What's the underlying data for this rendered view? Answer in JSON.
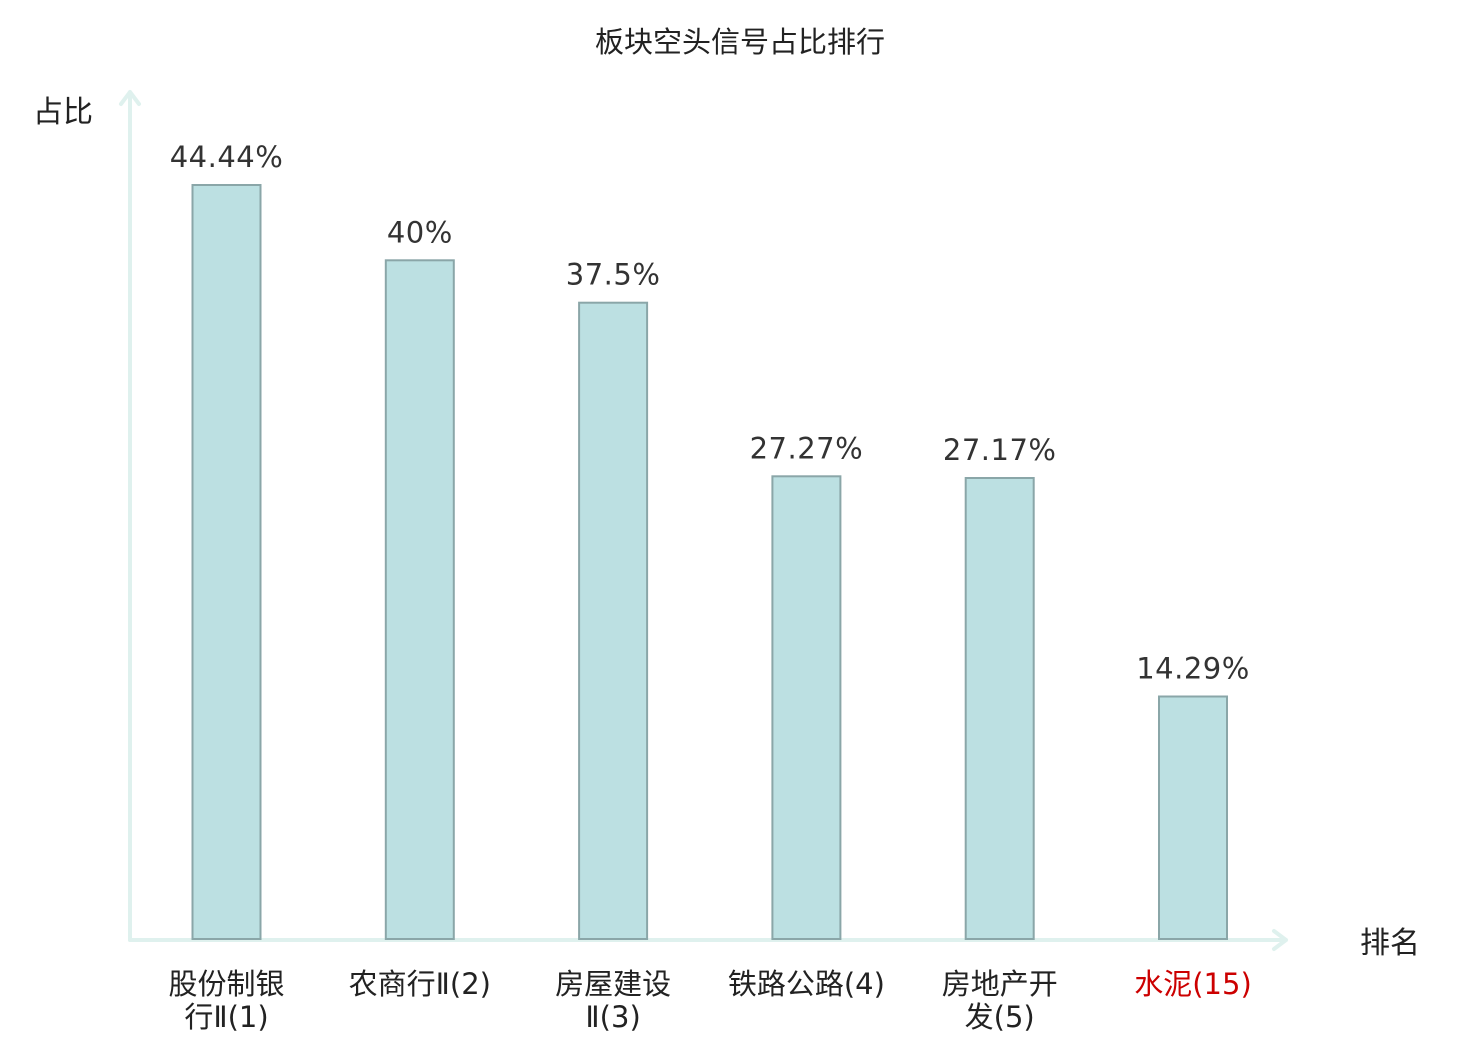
{
  "chart_data": {
    "type": "bar",
    "title": "板块空头信号占比排行",
    "ylabel": "占比",
    "xlabel": "排名",
    "categories": [
      [
        "股份制银",
        "行Ⅱ(1)"
      ],
      [
        "农商行Ⅱ(2)"
      ],
      [
        "房屋建设",
        "Ⅱ(3)"
      ],
      [
        "铁路公路(4)"
      ],
      [
        "房地产开",
        "发(5)"
      ],
      [
        "水泥(15)"
      ]
    ],
    "values": [
      44.44,
      40,
      37.5,
      27.27,
      27.17,
      14.29
    ],
    "value_labels": [
      "44.44%",
      "40%",
      "37.5%",
      "27.27%",
      "27.17%",
      "14.29%"
    ],
    "highlight_index": 5,
    "ylim": [
      0,
      44.44
    ],
    "grid": false,
    "colors": {
      "bar_fill": "#bce0e2",
      "bar_stroke": "#8aa6a8",
      "axis": "#dff1ee",
      "highlight_text": "#cc0000"
    }
  }
}
